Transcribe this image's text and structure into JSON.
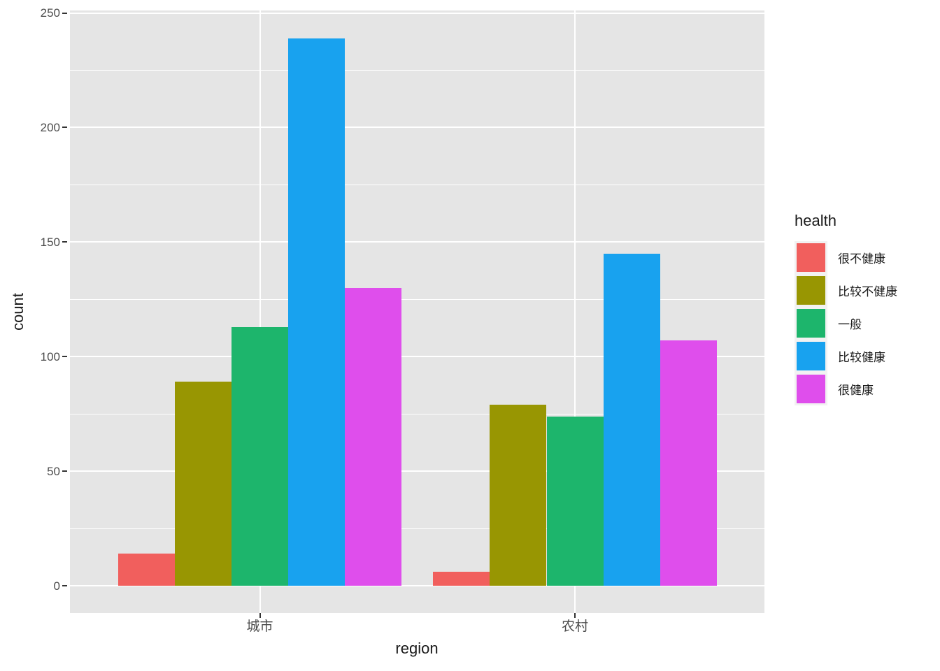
{
  "chart_data": {
    "type": "bar",
    "title": "",
    "xlabel": "region",
    "ylabel": "count",
    "legend_title": "health",
    "legend_position": "right",
    "grid": true,
    "categories": [
      "城市",
      "农村"
    ],
    "series": [
      {
        "name": "很不健康",
        "color": "#F15F5D",
        "values": [
          14,
          6
        ]
      },
      {
        "name": "比较不健康",
        "color": "#989602",
        "values": [
          89,
          79
        ]
      },
      {
        "name": "一般",
        "color": "#1DB56C",
        "values": [
          113,
          74
        ]
      },
      {
        "name": "比较健康",
        "color": "#18A2EF",
        "values": [
          239,
          145
        ]
      },
      {
        "name": "很健康",
        "color": "#DF4EEC",
        "values": [
          130,
          107
        ]
      }
    ],
    "y_ticks": [
      0,
      50,
      100,
      150,
      200,
      250
    ],
    "y_minor_ticks": [
      25,
      75,
      125,
      175,
      225
    ],
    "ylim": [
      -12,
      251
    ],
    "style": {
      "panel_bg": "#E5E5E5",
      "grid_color": "#FFFFFF",
      "tick_label_color": "#4D4D4D",
      "tick_mark_color": "#333333",
      "title_color": "#1A1A1A",
      "legend_key_bg": "#F2F2F2"
    }
  }
}
